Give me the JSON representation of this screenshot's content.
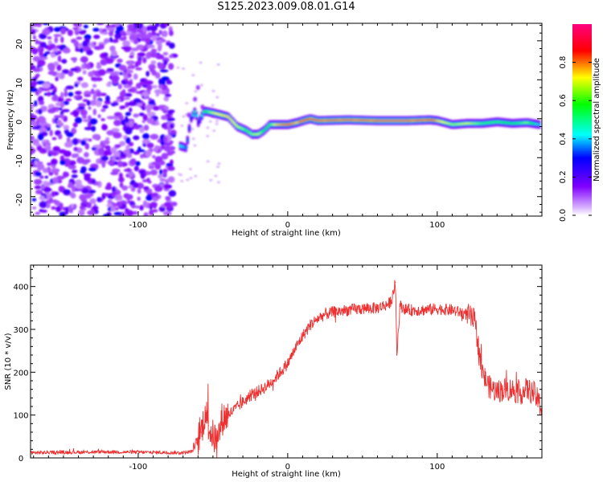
{
  "page": {
    "title": "S125.2023.009.08.01.G14"
  },
  "chart_data": [
    {
      "type": "heatmap",
      "title": "S125.2023.009.08.01.G14",
      "xlabel": "Height of straight line (km)",
      "ylabel": "Frequency (Hz)",
      "xlim": [
        -172,
        170
      ],
      "ylim": [
        -25,
        24.5
      ],
      "xticks": [
        -100,
        0,
        100
      ],
      "xtick_labels": [
        "-100",
        "0",
        "100"
      ],
      "yticks": [
        -20,
        -10,
        0,
        10,
        20
      ],
      "ytick_labels": [
        "-20",
        "-10",
        "0",
        "10",
        "20"
      ],
      "colorbar": {
        "label": "Normalized spectral amplitude",
        "range": [
          0,
          1
        ],
        "ticks": [
          0,
          0.2,
          0.4,
          0.6,
          0.8
        ],
        "tick_labels": [
          "0.0",
          "0.2",
          "0.4",
          "0.6",
          "0.8"
        ],
        "colormap": "rainbow (purple-blue-cyan-green-yellow-red-magenta)",
        "colors": [
          "#ffffff",
          "#d9b3ff",
          "#8000ff",
          "#0000ff",
          "#00ffff",
          "#00ff00",
          "#ffff00",
          "#ff0000",
          "#ff0080"
        ]
      },
      "noise_region_x": [
        -172,
        -76
      ],
      "ridge": {
        "x": [
          -72,
          -68,
          -65,
          -62,
          -60,
          -56,
          -50,
          -40,
          -34,
          -28,
          -24,
          -20,
          -16,
          -12,
          -8,
          0,
          6,
          10,
          15,
          20,
          40,
          60,
          80,
          95,
          100,
          110,
          120,
          130,
          140,
          150,
          160,
          168
        ],
        "frequency": [
          -7,
          -7.5,
          0,
          2,
          -1,
          2,
          1.5,
          0.5,
          -2,
          -3,
          -4,
          -4,
          -3,
          -1.5,
          -1.5,
          -1.5,
          -1,
          -0.5,
          0,
          -0.5,
          -0.3,
          -0.5,
          -0.5,
          -0.3,
          -0.5,
          -1.5,
          -1.2,
          -1.2,
          -0.8,
          -1.2,
          -1,
          -1.5
        ],
        "amplitude": [
          0.45,
          0.35,
          0.3,
          0.55,
          0.25,
          0.55,
          0.7,
          0.75,
          0.7,
          0.6,
          0.65,
          0.7,
          0.55,
          0.6,
          0.75,
          0.85,
          0.75,
          0.9,
          0.95,
          0.95,
          0.95,
          0.95,
          0.95,
          0.9,
          0.75,
          0.65,
          0.7,
          0.6,
          0.6,
          0.55,
          0.65,
          0.4
        ]
      }
    },
    {
      "type": "line",
      "xlabel": "Height of straight line (km)",
      "ylabel": "SNR (10 * v/v)",
      "xlim": [
        -172,
        170
      ],
      "ylim": [
        0,
        450
      ],
      "xticks": [
        -100,
        0,
        100
      ],
      "xtick_labels": [
        "-100",
        "0",
        "100"
      ],
      "yticks": [
        0,
        100,
        200,
        300,
        400
      ],
      "ytick_labels": [
        "0",
        "100",
        "200",
        "300",
        "400"
      ],
      "line_color": "#ee3030",
      "series": [
        {
          "x": [
            -172,
            -150,
            -120,
            -90,
            -70,
            -64,
            -61,
            -58,
            -55,
            -53,
            -50,
            -47,
            -44,
            -40,
            -35,
            -30,
            -25,
            -20,
            -15,
            -10,
            -5,
            0,
            5,
            10,
            15,
            20,
            25,
            30,
            40,
            50,
            60,
            68,
            70,
            72,
            73,
            75,
            80,
            90,
            100,
            110,
            115,
            120,
            125,
            128,
            130,
            132,
            135,
            140,
            145,
            150,
            155,
            160,
            165,
            170
          ],
          "values": [
            12,
            13,
            14,
            13,
            12,
            15,
            35,
            60,
            110,
            75,
            50,
            40,
            90,
            100,
            115,
            130,
            145,
            155,
            165,
            180,
            200,
            220,
            255,
            285,
            310,
            325,
            335,
            340,
            345,
            348,
            350,
            360,
            375,
            410,
            240,
            355,
            345,
            345,
            348,
            345,
            340,
            335,
            320,
            250,
            200,
            185,
            165,
            155,
            160,
            160,
            150,
            160,
            150,
            115
          ]
        }
      ]
    }
  ]
}
